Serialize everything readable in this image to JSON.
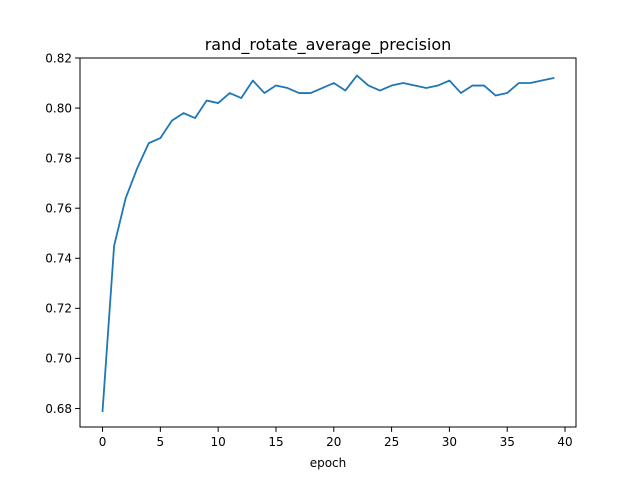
{
  "chart_data": {
    "type": "line",
    "title": "rand_rotate_average_precision",
    "xlabel": "epoch",
    "ylabel": "",
    "xlim": [
      -1.95,
      40.95
    ],
    "ylim": [
      0.6726,
      0.82
    ],
    "xticks": [
      0,
      5,
      10,
      15,
      20,
      25,
      30,
      35,
      40
    ],
    "xtick_labels": [
      "0",
      "5",
      "10",
      "15",
      "20",
      "25",
      "30",
      "35",
      "40"
    ],
    "yticks": [
      0.68,
      0.7,
      0.72,
      0.74,
      0.76,
      0.78,
      0.8,
      0.82
    ],
    "ytick_labels": [
      "0.68",
      "0.70",
      "0.72",
      "0.74",
      "0.76",
      "0.78",
      "0.80",
      "0.82"
    ],
    "grid": false,
    "legend": "none",
    "series": [
      {
        "color": "#1f77b4",
        "x": [
          0,
          1,
          2,
          3,
          4,
          5,
          6,
          7,
          8,
          9,
          10,
          11,
          12,
          13,
          14,
          15,
          16,
          17,
          18,
          19,
          20,
          21,
          22,
          23,
          24,
          25,
          26,
          27,
          28,
          29,
          30,
          31,
          32,
          33,
          34,
          35,
          36,
          37,
          38,
          39
        ],
        "values": [
          0.679,
          0.745,
          0.764,
          0.776,
          0.786,
          0.788,
          0.795,
          0.798,
          0.796,
          0.803,
          0.802,
          0.806,
          0.804,
          0.811,
          0.806,
          0.809,
          0.808,
          0.806,
          0.806,
          0.808,
          0.81,
          0.807,
          0.813,
          0.809,
          0.807,
          0.809,
          0.81,
          0.809,
          0.808,
          0.809,
          0.811,
          0.806,
          0.809,
          0.809,
          0.805,
          0.806,
          0.81,
          0.81,
          0.811,
          0.812
        ]
      }
    ]
  }
}
